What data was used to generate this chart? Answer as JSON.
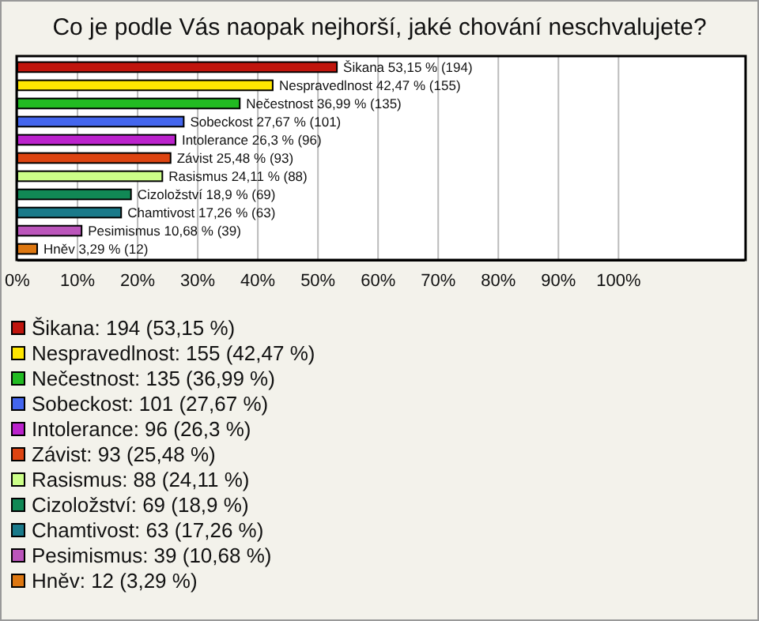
{
  "chart_data": {
    "type": "bar",
    "orientation": "horizontal",
    "title": "Co je podle Vás naopak nejhorší, jaké chování neschvalujete?",
    "categories": [
      null,
      null,
      null,
      null,
      null,
      null,
      null,
      null,
      null,
      null,
      null
    ],
    "series": [
      {
        "name": "Šikana: 194 (53,15 %)",
        "color": "#c0150d",
        "values": [
          53.15,
          null,
          null,
          null,
          null,
          null,
          null,
          null,
          null,
          null,
          null
        ],
        "value_labels": [
          "Šikana 53,15 % (194)",
          null,
          null,
          null,
          null,
          null,
          null,
          null,
          null,
          null,
          null
        ]
      },
      {
        "name": "Nespravedlnost: 155 (42,47 %)",
        "color": "#ffe600",
        "values": [
          null,
          42.47,
          null,
          null,
          null,
          null,
          null,
          null,
          null,
          null,
          null
        ],
        "value_labels": [
          null,
          "Nespravedlnost 42,47 % (155)",
          null,
          null,
          null,
          null,
          null,
          null,
          null,
          null,
          null
        ]
      },
      {
        "name": "Nečestnost: 135 (36,99 %)",
        "color": "#22bb22",
        "values": [
          null,
          null,
          36.99,
          null,
          null,
          null,
          null,
          null,
          null,
          null,
          null
        ],
        "value_labels": [
          null,
          null,
          "Nečestnost 36,99 % (135)",
          null,
          null,
          null,
          null,
          null,
          null,
          null,
          null
        ]
      },
      {
        "name": "Sobeckost: 101 (27,67 %)",
        "color": "#4466ee",
        "values": [
          null,
          null,
          null,
          27.67,
          null,
          null,
          null,
          null,
          null,
          null,
          null
        ],
        "value_labels": [
          null,
          null,
          null,
          "Sobeckost 27,67 % (101)",
          null,
          null,
          null,
          null,
          null,
          null,
          null
        ]
      },
      {
        "name": "Intolerance: 96 (26,3 %)",
        "color": "#bb22cc",
        "values": [
          null,
          null,
          null,
          null,
          26.3,
          null,
          null,
          null,
          null,
          null,
          null
        ],
        "value_labels": [
          null,
          null,
          null,
          null,
          "Intolerance 26,3 % (96)",
          null,
          null,
          null,
          null,
          null,
          null
        ]
      },
      {
        "name": "Závist: 93 (25,48 %)",
        "color": "#dd4411",
        "values": [
          null,
          null,
          null,
          null,
          null,
          25.48,
          null,
          null,
          null,
          null,
          null
        ],
        "value_labels": [
          null,
          null,
          null,
          null,
          null,
          "Závist 25,48 % (93)",
          null,
          null,
          null,
          null,
          null
        ]
      },
      {
        "name": "Rasismus: 88 (24,11 %)",
        "color": "#ccff88",
        "values": [
          null,
          null,
          null,
          null,
          null,
          null,
          24.11,
          null,
          null,
          null,
          null
        ],
        "value_labels": [
          null,
          null,
          null,
          null,
          null,
          null,
          "Rasismus 24,11 % (88)",
          null,
          null,
          null,
          null
        ]
      },
      {
        "name": "Cizoložství: 69 (18,9 %)",
        "color": "#118855",
        "values": [
          null,
          null,
          null,
          null,
          null,
          null,
          null,
          18.9,
          null,
          null,
          null
        ],
        "value_labels": [
          null,
          null,
          null,
          null,
          null,
          null,
          null,
          "Cizoložství 18,9 % (69)",
          null,
          null,
          null
        ]
      },
      {
        "name": "Chamtivost: 63 (17,26 %)",
        "color": "#1a7a8a",
        "values": [
          null,
          null,
          null,
          null,
          null,
          null,
          null,
          null,
          17.26,
          null,
          null
        ],
        "value_labels": [
          null,
          null,
          null,
          null,
          null,
          null,
          null,
          null,
          "Chamtivost 17,26 % (63)",
          null,
          null
        ]
      },
      {
        "name": "Pesimismus: 39 (10,68 %)",
        "color": "#bb55bb",
        "values": [
          null,
          null,
          null,
          null,
          null,
          null,
          null,
          null,
          null,
          10.68,
          null
        ],
        "value_labels": [
          null,
          null,
          null,
          null,
          null,
          null,
          null,
          null,
          null,
          "Pesimismus 10,68 % (39)",
          null
        ]
      },
      {
        "name": "Hněv: 12 (3,29 %)",
        "color": "#dd7711",
        "values": [
          null,
          null,
          null,
          null,
          null,
          null,
          null,
          null,
          null,
          null,
          3.29
        ],
        "value_labels": [
          null,
          null,
          null,
          null,
          null,
          null,
          null,
          null,
          null,
          null,
          "Hněv 3,29 % (12)"
        ]
      }
    ],
    "legend": "bottom",
    "xlim": [
      0,
      121
    ],
    "xticks": [
      {
        "value": 0,
        "label": "0%"
      },
      {
        "value": 10,
        "label": "10%"
      },
      {
        "value": 20,
        "label": "20%"
      },
      {
        "value": 30,
        "label": "30%"
      },
      {
        "value": 40,
        "label": "40%"
      },
      {
        "value": 50,
        "label": "50%"
      },
      {
        "value": 60,
        "label": "60%"
      },
      {
        "value": 70,
        "label": "70%"
      },
      {
        "value": 80,
        "label": "80%"
      },
      {
        "value": 90,
        "label": "90%"
      },
      {
        "value": 100,
        "label": "100%"
      }
    ],
    "grid": "x",
    "tick_labels": "x"
  }
}
